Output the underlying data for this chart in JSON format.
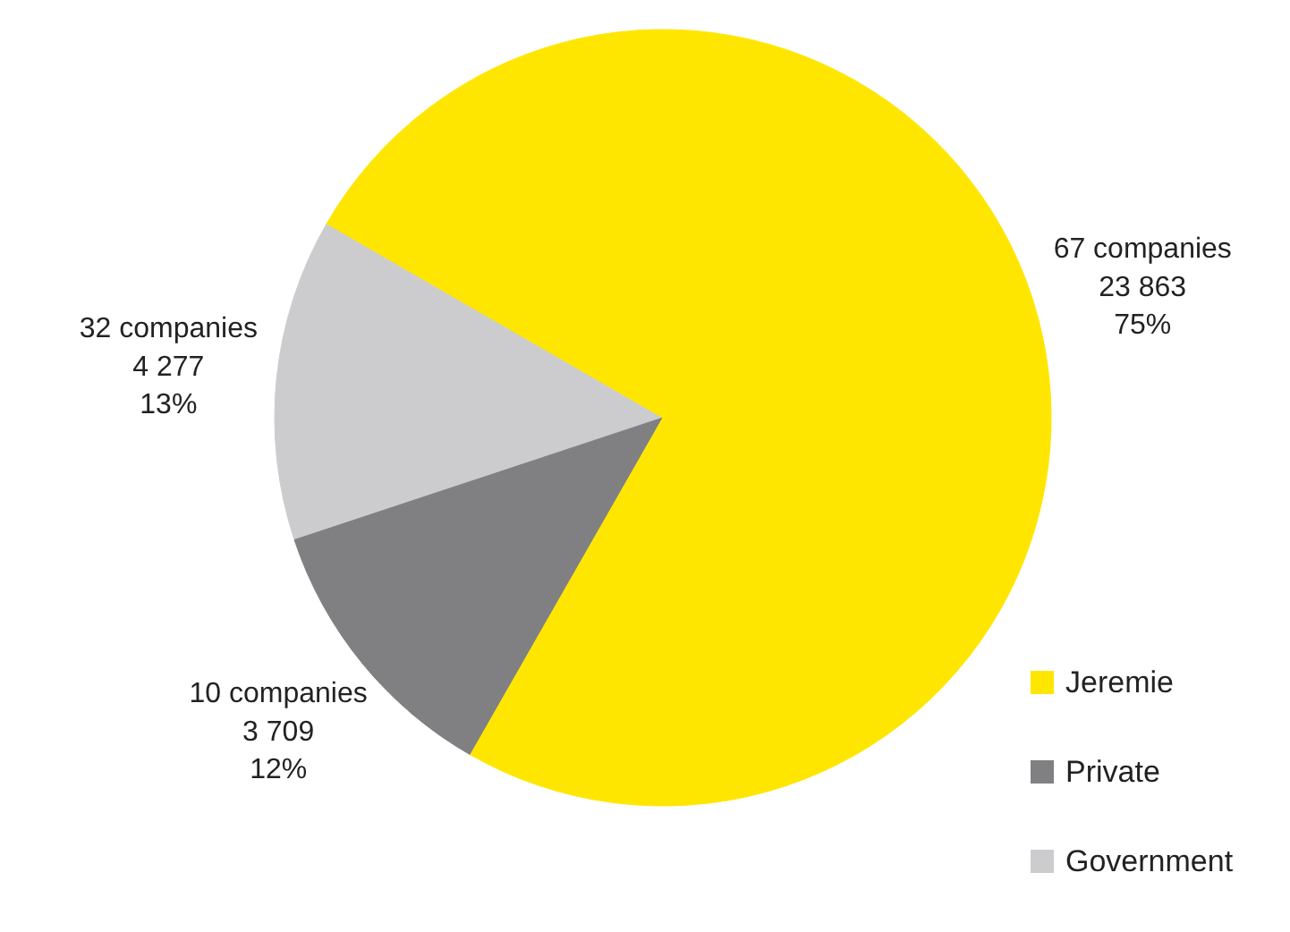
{
  "chart_data": {
    "type": "pie",
    "categories": [
      "Jeremie",
      "Private",
      "Government"
    ],
    "values": [
      23863,
      3709,
      4277
    ],
    "colors": [
      "#ffe600",
      "#808083",
      "#cccccf"
    ],
    "value_labels": [
      "67 companies\n23 863\n75%",
      "10 companies\n3 709\n12%",
      "32 companies\n4 277\n13%"
    ],
    "legend": "bottom right"
  }
}
